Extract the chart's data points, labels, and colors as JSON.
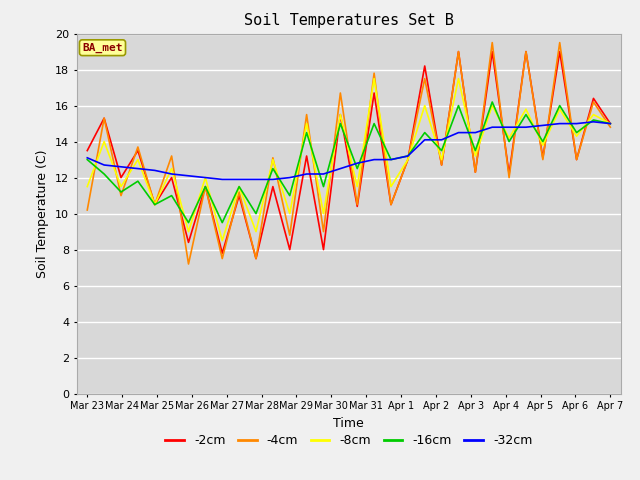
{
  "title": "Soil Temperatures Set B",
  "xlabel": "Time",
  "ylabel": "Soil Temperature (C)",
  "annotation": "BA_met",
  "ylim": [
    0,
    20
  ],
  "fig_bg": "#f0f0f0",
  "plot_bg": "#d8d8d8",
  "legend_labels": [
    "-2cm",
    "-4cm",
    "-8cm",
    "-16cm",
    "-32cm"
  ],
  "legend_colors": [
    "#ff0000",
    "#ff8800",
    "#ffff00",
    "#00cc00",
    "#0000ff"
  ],
  "x_tick_labels": [
    "Mar 23",
    "Mar 24",
    "Mar 25",
    "Mar 26",
    "Mar 27",
    "Mar 28",
    "Mar 29",
    "Mar 30",
    "Mar 31",
    "Apr 1",
    "Apr 2",
    "Apr 3",
    "Apr 4",
    "Apr 5",
    "Apr 6",
    "Apr 7"
  ],
  "series": {
    "neg2cm": [
      13.5,
      15.3,
      12.0,
      13.5,
      10.5,
      12.0,
      8.4,
      11.5,
      7.8,
      11.0,
      7.5,
      11.5,
      8.0,
      13.2,
      8.0,
      15.5,
      10.4,
      16.7,
      10.5,
      13.0,
      18.2,
      12.7,
      19.0,
      12.3,
      19.0,
      12.2,
      19.0,
      13.1,
      19.0,
      13.0,
      16.4,
      15.0
    ],
    "neg4cm": [
      10.2,
      15.3,
      11.0,
      13.7,
      10.5,
      13.2,
      7.2,
      11.5,
      7.5,
      11.2,
      7.5,
      13.1,
      8.8,
      15.5,
      9.0,
      16.7,
      10.5,
      17.8,
      10.5,
      13.0,
      17.5,
      12.7,
      19.0,
      12.3,
      19.5,
      12.0,
      19.0,
      13.0,
      19.5,
      13.0,
      16.2,
      14.8
    ],
    "neg8cm": [
      11.5,
      14.0,
      11.5,
      13.0,
      10.5,
      12.5,
      9.0,
      12.0,
      8.5,
      11.5,
      9.0,
      13.0,
      10.0,
      15.0,
      10.0,
      15.5,
      11.5,
      17.5,
      11.5,
      13.0,
      16.0,
      13.0,
      17.5,
      13.2,
      16.0,
      14.2,
      15.8,
      13.8,
      15.8,
      14.3,
      15.5,
      15.0
    ],
    "neg16cm": [
      13.0,
      12.2,
      11.2,
      11.8,
      10.5,
      11.0,
      9.5,
      11.5,
      9.5,
      11.5,
      10.0,
      12.5,
      11.0,
      14.5,
      11.5,
      15.0,
      12.5,
      15.0,
      13.0,
      13.2,
      14.5,
      13.5,
      16.0,
      13.5,
      16.2,
      14.0,
      15.5,
      14.0,
      16.0,
      14.5,
      15.2,
      15.0
    ],
    "neg32cm": [
      13.1,
      12.7,
      12.6,
      12.5,
      12.4,
      12.2,
      12.1,
      12.0,
      11.9,
      11.9,
      11.9,
      11.9,
      12.0,
      12.2,
      12.2,
      12.5,
      12.8,
      13.0,
      13.0,
      13.2,
      14.1,
      14.1,
      14.5,
      14.5,
      14.8,
      14.8,
      14.8,
      14.9,
      15.0,
      15.0,
      15.1,
      15.0
    ]
  }
}
